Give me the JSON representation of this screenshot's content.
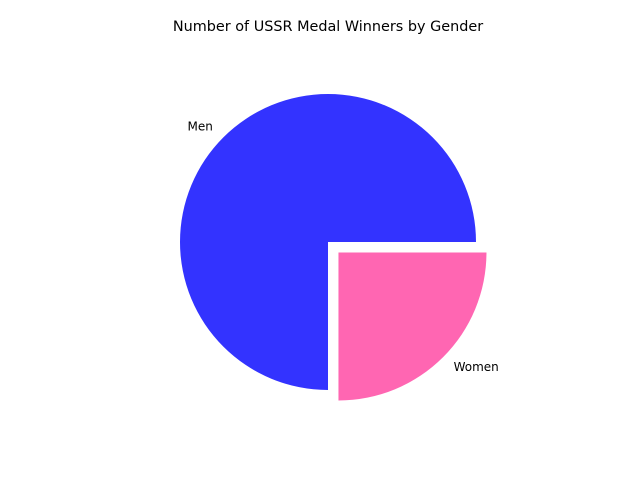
{
  "chart_data": {
    "type": "pie",
    "title": "Number of USSR Medal Winners by Gender",
    "categories": [
      "Men",
      "Women"
    ],
    "values": [
      75,
      25
    ],
    "colors": [
      "#3333ff",
      "#ff66b2"
    ],
    "explode": [
      0,
      0.1
    ],
    "start_angle_deg": 0,
    "direction": "counterclockwise",
    "legend": "none"
  }
}
